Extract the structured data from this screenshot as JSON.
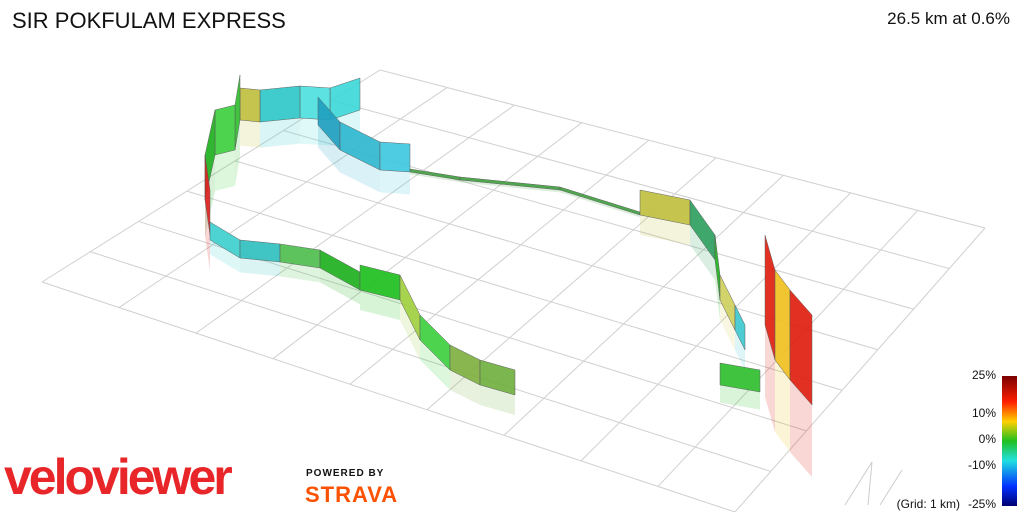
{
  "header": {
    "title": "SIR POKFULAM EXPRESS",
    "stats": "26.5 km at 0.6%"
  },
  "legend": {
    "labels": [
      "25%",
      "10%",
      "0%",
      "-10%",
      "-25%"
    ],
    "grid_note": "(Grid: 1 km)"
  },
  "branding": {
    "logo": "veloviewer",
    "powered_by": "POWERED BY",
    "partner": "STRAVA"
  }
}
